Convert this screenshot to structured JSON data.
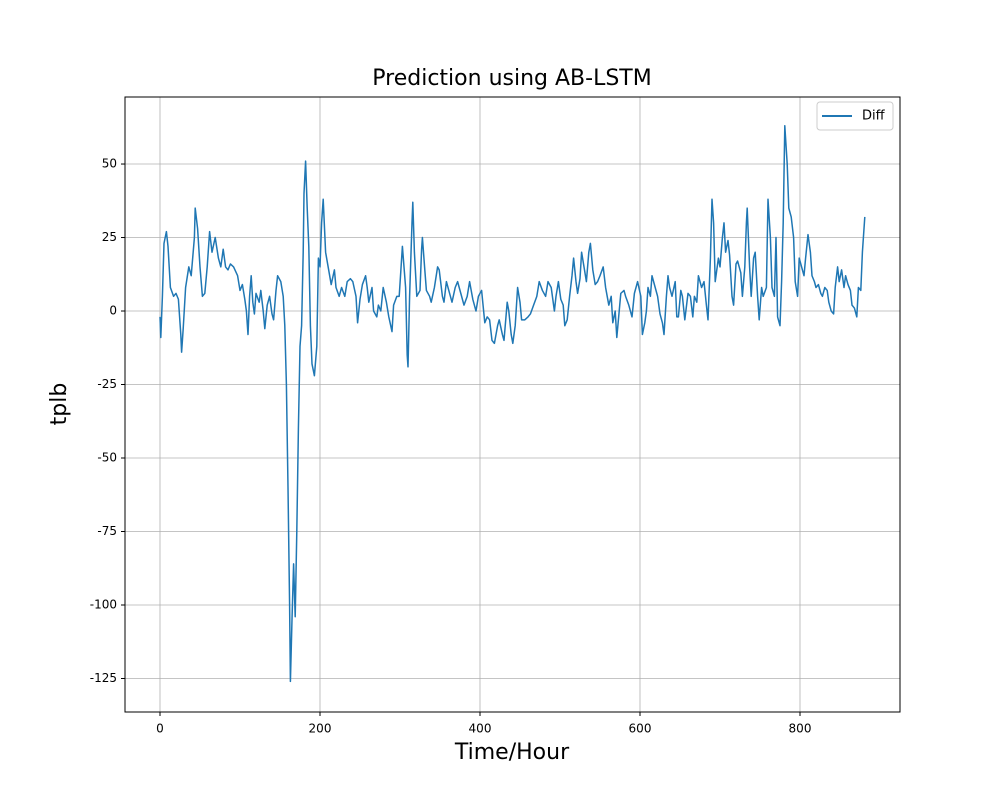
{
  "chart_data": {
    "type": "line",
    "title": "Prediction using AB-LSTM",
    "x_label": "Time/Hour",
    "y_label": "tplb",
    "xlim": [
      -43.75,
      925
    ],
    "ylim": [
      -136.4,
      72.8
    ],
    "xticks": [
      0,
      200,
      400,
      600,
      800
    ],
    "yticks": [
      -125,
      -100,
      -75,
      -50,
      -25,
      0,
      25,
      50
    ],
    "grid": true,
    "legend": "upper right",
    "x": [
      0,
      1,
      3,
      5,
      8,
      10,
      13,
      17,
      20,
      23,
      26,
      27,
      29,
      32,
      36,
      39,
      43,
      44,
      47,
      50,
      53,
      56,
      59,
      62,
      65,
      69,
      73,
      76,
      79,
      82,
      85,
      88,
      92,
      97,
      100,
      103,
      106,
      108,
      110,
      112,
      114,
      116,
      118,
      120,
      124,
      126,
      129,
      131,
      134,
      137,
      140,
      142,
      145,
      147,
      151,
      154,
      156,
      158,
      160,
      162,
      163,
      165,
      167,
      169,
      171,
      173,
      175,
      177,
      179,
      180,
      182,
      184,
      186,
      188,
      190,
      193,
      196,
      198,
      200,
      202,
      204,
      207,
      214,
      218,
      220,
      224,
      227,
      231,
      234,
      238,
      241,
      245,
      247,
      250,
      253,
      257,
      259,
      261,
      265,
      267,
      271,
      273,
      276,
      279,
      283,
      286,
      290,
      292,
      296,
      299,
      303,
      307,
      309,
      310,
      312,
      315,
      316,
      318,
      321,
      325,
      327,
      328,
      331,
      333,
      337,
      339,
      343,
      347,
      349,
      353,
      355,
      358,
      361,
      365,
      369,
      372,
      376,
      380,
      384,
      387,
      391,
      395,
      398,
      402,
      406,
      409,
      412,
      415,
      418,
      422,
      424,
      428,
      430,
      434,
      436,
      439,
      441,
      444,
      447,
      450,
      452,
      456,
      460,
      463,
      467,
      471,
      474,
      478,
      482,
      485,
      489,
      493,
      495,
      498,
      501,
      504,
      506,
      509,
      512,
      515,
      517,
      520,
      522,
      525,
      527,
      530,
      533,
      536,
      538,
      541,
      544,
      547,
      550,
      554,
      557,
      559,
      561,
      564,
      566,
      569,
      571,
      574,
      576,
      580,
      582,
      586,
      590,
      593,
      597,
      601,
      603,
      606,
      608,
      610,
      613,
      615,
      619,
      622,
      625,
      628,
      630,
      633,
      635,
      637,
      640,
      644,
      646,
      648,
      651,
      653,
      656,
      660,
      663,
      666,
      668,
      671,
      673,
      677,
      680,
      683,
      685,
      688,
      690,
      692,
      694,
      698,
      700,
      703,
      705,
      707,
      710,
      712,
      715,
      717,
      720,
      722,
      726,
      728,
      731,
      733,
      734,
      737,
      739,
      742,
      744,
      747,
      749,
      752,
      754,
      758,
      760,
      763,
      765,
      768,
      770,
      772,
      775,
      777,
      779,
      781,
      784,
      786,
      789,
      792,
      794,
      797,
      799,
      802,
      805,
      807,
      810,
      813,
      815,
      818,
      820,
      823,
      826,
      828,
      831,
      834,
      836,
      839,
      842,
      844,
      847,
      849,
      852,
      855,
      857,
      860,
      863,
      865,
      868,
      871,
      873,
      876,
      878,
      881
    ],
    "series": [
      {
        "name": "Diff",
        "color": "#1f77b4",
        "values": [
          -2,
          -9,
          5,
          23,
          27,
          22,
          8,
          5,
          6,
          4,
          -8,
          -14,
          -6,
          8,
          15,
          12,
          25,
          35,
          28,
          15,
          5,
          6,
          15,
          27,
          20,
          25,
          18,
          15,
          21,
          15,
          14,
          16,
          15,
          12,
          7,
          9,
          4,
          0,
          -8,
          5,
          12,
          3,
          -1,
          6,
          3,
          7,
          0,
          -6,
          2,
          5,
          -1,
          -3,
          7,
          12,
          10,
          5,
          -5,
          -25,
          -60,
          -100,
          -126,
          -105,
          -86,
          -104,
          -75,
          -40,
          -12,
          -5,
          20,
          40,
          51,
          35,
          22,
          -5,
          -18,
          -22,
          -12,
          18,
          15,
          30,
          38,
          20,
          9,
          14,
          8,
          5,
          8,
          5,
          10,
          11,
          10,
          5,
          -4,
          4,
          9,
          12,
          8,
          3,
          8,
          0,
          -2,
          2,
          0,
          8,
          3,
          -2,
          -7,
          2,
          5,
          5,
          22,
          8,
          -15,
          -19,
          5,
          30,
          37,
          20,
          5,
          7,
          21,
          25,
          14,
          7,
          5,
          3,
          8,
          15,
          14,
          5,
          3,
          10,
          7,
          3,
          8,
          10,
          6,
          2,
          5,
          10,
          4,
          0,
          5,
          7,
          -4,
          -2,
          -3,
          -10,
          -11,
          -5,
          -3,
          -8,
          -10,
          3,
          0,
          -8,
          -11,
          -5,
          8,
          3,
          -3,
          -3,
          -2,
          -1,
          2,
          5,
          10,
          7,
          5,
          10,
          8,
          0,
          5,
          10,
          4,
          2,
          -5,
          -3,
          5,
          12,
          18,
          10,
          6,
          11,
          20,
          15,
          10,
          20,
          23,
          14,
          9,
          10,
          12,
          15,
          8,
          5,
          2,
          5,
          -4,
          0,
          -9,
          0,
          6,
          7,
          5,
          2,
          -2,
          6,
          10,
          5,
          -8,
          -4,
          0,
          8,
          5,
          12,
          8,
          5,
          -1,
          -4,
          -8,
          5,
          12,
          8,
          5,
          10,
          -2,
          -2,
          7,
          5,
          -3,
          6,
          5,
          -2,
          5,
          3,
          12,
          8,
          10,
          2,
          -3,
          18,
          38,
          30,
          10,
          18,
          15,
          25,
          30,
          20,
          24,
          19,
          5,
          2,
          16,
          17,
          13,
          5,
          15,
          30,
          35,
          15,
          5,
          18,
          20,
          5,
          -3,
          8,
          5,
          8,
          38,
          25,
          8,
          5,
          25,
          -2,
          -5,
          10,
          30,
          63,
          50,
          35,
          32,
          25,
          10,
          5,
          18,
          15,
          12,
          18,
          26,
          20,
          12,
          10,
          8,
          9,
          6,
          5,
          8,
          7,
          3,
          0,
          -1,
          8,
          15,
          10,
          14,
          8,
          12,
          9,
          7,
          2,
          1,
          -2,
          8,
          7,
          20,
          32
        ]
      }
    ]
  }
}
